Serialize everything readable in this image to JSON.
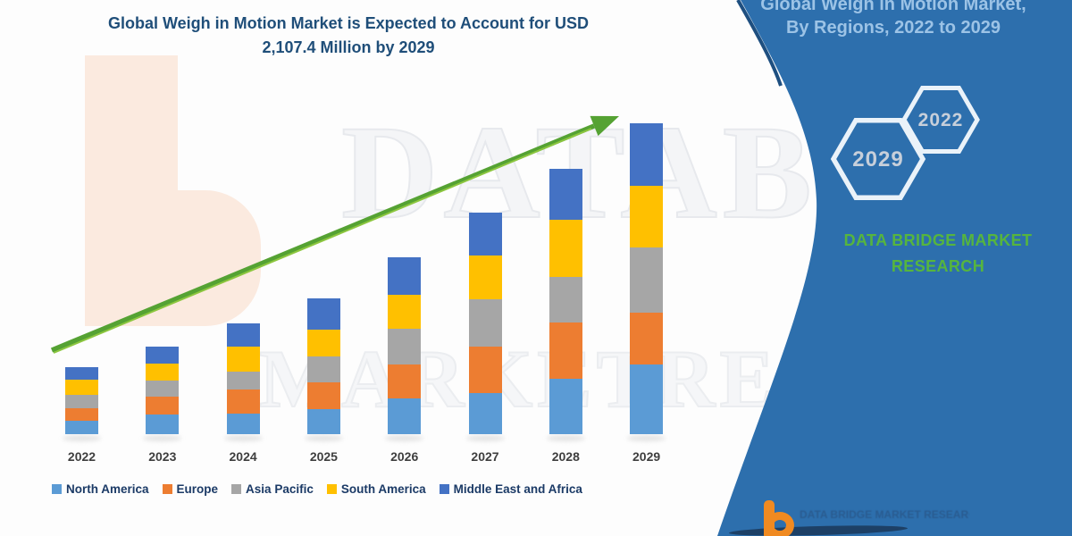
{
  "title": {
    "line1": "Global Weigh in Motion Market is Expected to Account for USD",
    "line2": "2,107.4 Million by 2029"
  },
  "side_panel": {
    "heading_line1": "Global Weigh in Motion Market,",
    "heading_line2": "By Regions, 2022 to 2029",
    "hexagons": [
      {
        "label": "2029"
      },
      {
        "label": "2022"
      }
    ],
    "brand_line1": "DATA BRIDGE MARKET",
    "brand_line2": "RESEARCH",
    "colors": {
      "panel_blue": "#2D6FAD",
      "heading_text": "#9CC3E6",
      "brand_green": "#56B53E",
      "hexagon_outline": "#EAF2F9"
    }
  },
  "watermarks": {
    "chart_text_line1": "DATABRIDGE",
    "chart_text_line2": "MARKETRESE",
    "logo_letter_color": "#FBEADF"
  },
  "bottom_logo": {
    "text": "DATA BRIDGE MARKET RESEARCH"
  },
  "chart_data": {
    "type": "bar",
    "stacked": true,
    "unit": "USD Million",
    "categories": [
      "2022",
      "2023",
      "2024",
      "2025",
      "2026",
      "2027",
      "2028",
      "2029"
    ],
    "series": [
      {
        "name": "North America",
        "color": "#5B9BD5",
        "values": [
          90.8,
          133.2,
          139.3,
          169.6,
          242.3,
          278.6,
          375.5,
          472.2
        ]
      },
      {
        "name": "Europe",
        "color": "#ED7D31",
        "values": [
          84.8,
          121.1,
          163.5,
          181.7,
          230.1,
          314.9,
          381.5,
          351.3
        ]
      },
      {
        "name": "Asia Pacific",
        "color": "#A6A6A6",
        "values": [
          90.8,
          109.0,
          121.1,
          175.6,
          242.3,
          321.0,
          308.9,
          442.1
        ]
      },
      {
        "name": "South America",
        "color": "#FFC000",
        "values": [
          103.0,
          115.1,
          169.6,
          181.7,
          230.1,
          296.8,
          387.6,
          417.9
        ]
      },
      {
        "name": "Middle East and Africa",
        "color": "#4472C4",
        "values": [
          84.8,
          115.1,
          157.5,
          212.0,
          254.4,
          290.7,
          345.2,
          423.9
        ]
      }
    ],
    "totals": [
      454.2,
      593.5,
      751.0,
      920.6,
      1199.2,
      1502.0,
      1798.7,
      2107.4
    ],
    "ylim": [
      0,
      2107.4
    ],
    "axes_visible": false,
    "grid": false,
    "legend_position": "bottom",
    "annotation": "green upward trend arrow from 2022 to 2029",
    "arrow_color": "#55A233"
  }
}
